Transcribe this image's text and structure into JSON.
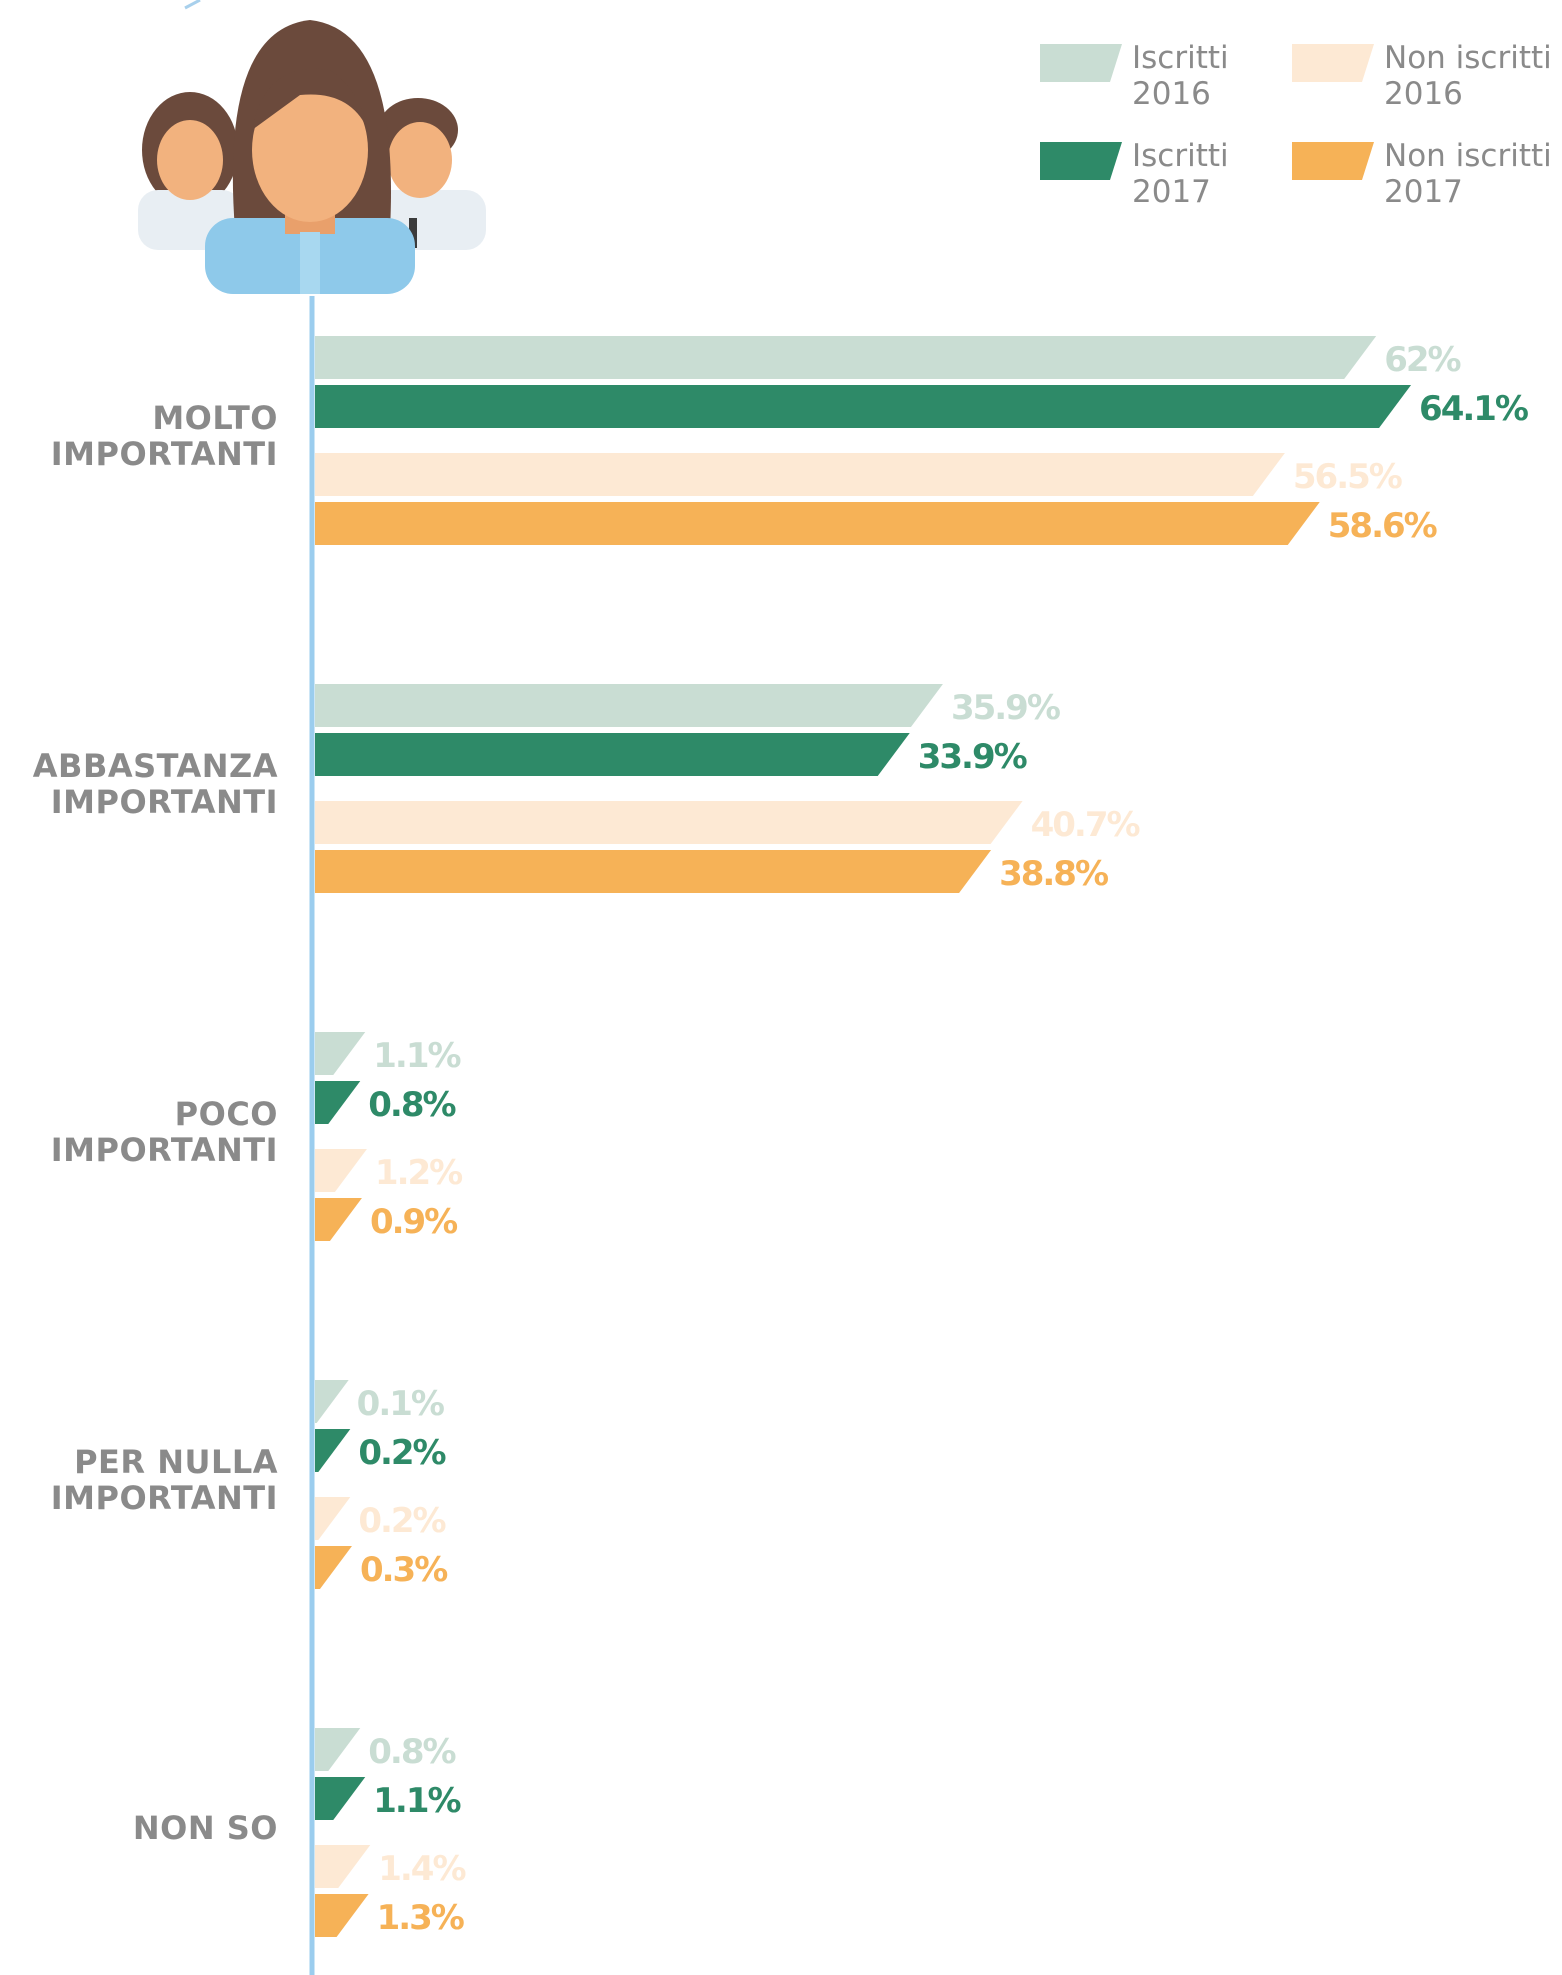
{
  "chart_data": {
    "type": "bar",
    "orientation": "horizontal",
    "categories": [
      "MOLTO IMPORTANTI",
      "ABBASTANZA IMPORTANTI",
      "POCO IMPORTANTI",
      "PER NULLA IMPORTANTI",
      "NON SO"
    ],
    "series": [
      {
        "name": "Iscritti 2016",
        "color": "#c9ddd3",
        "values": [
          62,
          35.9,
          1.1,
          0.1,
          0.8
        ],
        "value_labels": [
          "62%",
          "35.9%",
          "1.1%",
          "0.1%",
          "0.8%"
        ]
      },
      {
        "name": "Iscritti 2017",
        "color": "#2e8a68",
        "values": [
          64.1,
          33.9,
          0.8,
          0.2,
          1.1
        ],
        "value_labels": [
          "64.1%",
          "33.9%",
          "0.8%",
          "0.2%",
          "1.1%"
        ]
      },
      {
        "name": "Non iscritti 2016",
        "color": "#fde9d4",
        "values": [
          56.5,
          40.7,
          1.2,
          0.2,
          1.4
        ],
        "value_labels": [
          "56.5%",
          "40.7%",
          "1.2%",
          "0.2%",
          "1.4%"
        ]
      },
      {
        "name": "Non iscritti 2017",
        "color": "#f6b257",
        "values": [
          58.6,
          38.8,
          0.9,
          0.3,
          1.3
        ],
        "value_labels": [
          "58.6%",
          "38.8%",
          "0.9%",
          "0.3%",
          "1.3%"
        ]
      }
    ]
  }
}
